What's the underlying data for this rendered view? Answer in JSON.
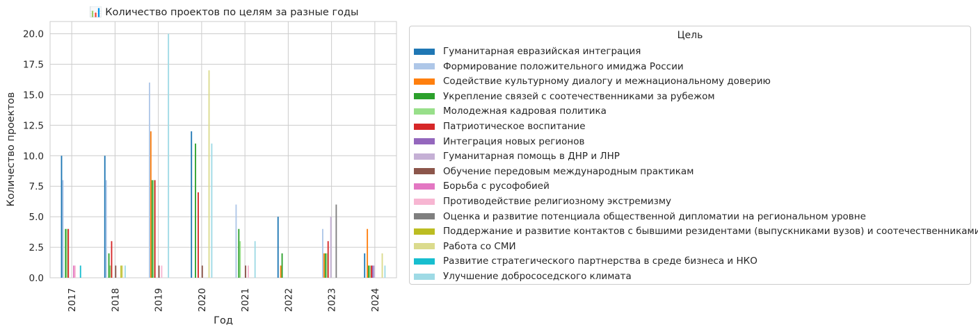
{
  "chart_data": {
    "type": "bar",
    "title": "📊 Количество проектов по целям за разные годы",
    "xlabel": "Год",
    "ylabel": "Количество проектов",
    "categories": [
      "2017",
      "2018",
      "2019",
      "2020",
      "2021",
      "2022",
      "2023",
      "2024"
    ],
    "ylim": [
      0,
      21
    ],
    "yticks": [
      "0.0",
      "2.5",
      "5.0",
      "7.5",
      "10.0",
      "12.5",
      "15.0",
      "17.5",
      "20.0"
    ],
    "grid": true,
    "legend": {
      "title": "Цель",
      "placement": "right"
    },
    "series": [
      {
        "name": "Гуманитарная евразийская интеграция",
        "color": "#1f77b4",
        "values": [
          10,
          10,
          0,
          12,
          0,
          5,
          0,
          2
        ]
      },
      {
        "name": "Формирование положительного имиджа России",
        "color": "#aec7e8",
        "values": [
          8,
          8,
          16,
          0,
          6,
          0,
          4,
          0
        ]
      },
      {
        "name": "Содействие культурному диалогу и межнациональному доверию",
        "color": "#ff7f0e",
        "values": [
          0,
          0,
          12,
          0,
          0,
          1,
          2,
          4
        ]
      },
      {
        "name": "Укрепление связей с соотечественниками за рубежом",
        "color": "#2ca02c",
        "values": [
          4,
          2,
          8,
          11,
          4,
          2,
          2,
          1
        ]
      },
      {
        "name": "Молодежная кадровая политика",
        "color": "#98df8a",
        "values": [
          4,
          1,
          8,
          0,
          3,
          0,
          2,
          1
        ]
      },
      {
        "name": "Патриотическое воспитание",
        "color": "#d62728",
        "values": [
          4,
          3,
          8,
          7,
          0,
          0,
          3,
          1
        ]
      },
      {
        "name": "Интеграция новых регионов",
        "color": "#9467bd",
        "values": [
          0,
          0,
          0,
          0,
          0,
          0,
          0,
          1
        ]
      },
      {
        "name": "Гуманитарная помощь в ДНР и ЛНР",
        "color": "#c5b0d5",
        "values": [
          0,
          0,
          0,
          0,
          0,
          0,
          5,
          1
        ]
      },
      {
        "name": "Обучение передовым международным практикам",
        "color": "#8c564b",
        "values": [
          0,
          1,
          1,
          1,
          1,
          0,
          0,
          0
        ]
      },
      {
        "name": "Борьба с русофобией",
        "color": "#e377c2",
        "values": [
          1,
          0,
          0,
          0,
          0,
          0,
          0,
          0
        ]
      },
      {
        "name": "Противодействие религиозному экстремизму",
        "color": "#f7b6d2",
        "values": [
          1,
          0,
          1,
          0,
          1,
          0,
          0,
          0
        ]
      },
      {
        "name": "Оценка и развитие потенциала общественной дипломатии на региональном уровне",
        "color": "#7f7f7f",
        "values": [
          0,
          0,
          0,
          0,
          0,
          0,
          6,
          0
        ]
      },
      {
        "name": "Поддержание и развитие контактов с бывшими резидентами (выпускниками вузов) и соотечественниками",
        "color": "#bcbd22",
        "values": [
          0,
          1,
          0,
          0,
          0,
          0,
          0,
          0
        ]
      },
      {
        "name": "Работа со СМИ",
        "color": "#dbdb8d",
        "values": [
          0,
          1,
          0,
          17,
          0,
          0,
          0,
          2
        ]
      },
      {
        "name": "Развитие стратегического партнерства в среде бизнеса и НКО",
        "color": "#17becf",
        "values": [
          1,
          0,
          0,
          0,
          0,
          0,
          0,
          0
        ]
      },
      {
        "name": "Улучшение добрососедского климата",
        "color": "#9edae5",
        "values": [
          0,
          1,
          20,
          11,
          3,
          0,
          0,
          1
        ]
      }
    ]
  }
}
